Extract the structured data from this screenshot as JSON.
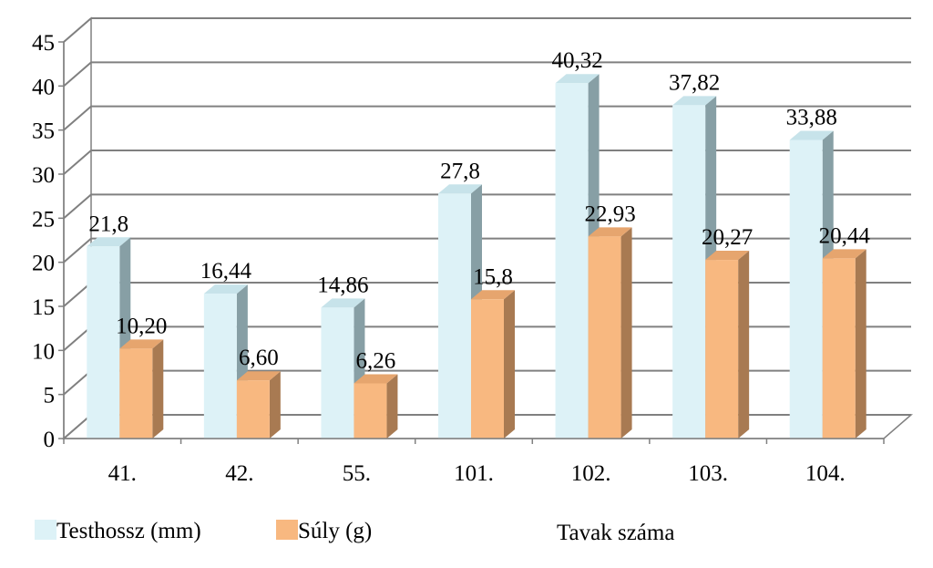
{
  "chart_data": {
    "type": "bar",
    "categories": [
      "41.",
      "42.",
      "55.",
      "101.",
      "102.",
      "103.",
      "104."
    ],
    "series": [
      {
        "name": "Testhossz (mm)",
        "values": [
          21.8,
          16.44,
          14.86,
          27.8,
          40.32,
          37.82,
          33.88
        ],
        "labels": [
          "21,8",
          "16,44",
          "14,86",
          "27,8",
          "40,32",
          "37,82",
          "33,88"
        ],
        "color": "#DDF2F7"
      },
      {
        "name": "Súly (g)",
        "values": [
          10.2,
          6.6,
          6.26,
          15.8,
          22.93,
          20.27,
          20.44
        ],
        "labels": [
          "10,20",
          "6,60",
          "6,26",
          "15,8",
          "22,93",
          "20,27",
          "20,44"
        ],
        "color": "#F8B880"
      }
    ],
    "xlabel": "Tavak száma",
    "ylim": [
      0,
      45
    ],
    "yticks": [
      "0",
      "5",
      "10",
      "15",
      "20",
      "25",
      "30",
      "35",
      "40",
      "45"
    ],
    "grid": true,
    "legend": "bottom-left",
    "style": "3d-clustered-column"
  }
}
